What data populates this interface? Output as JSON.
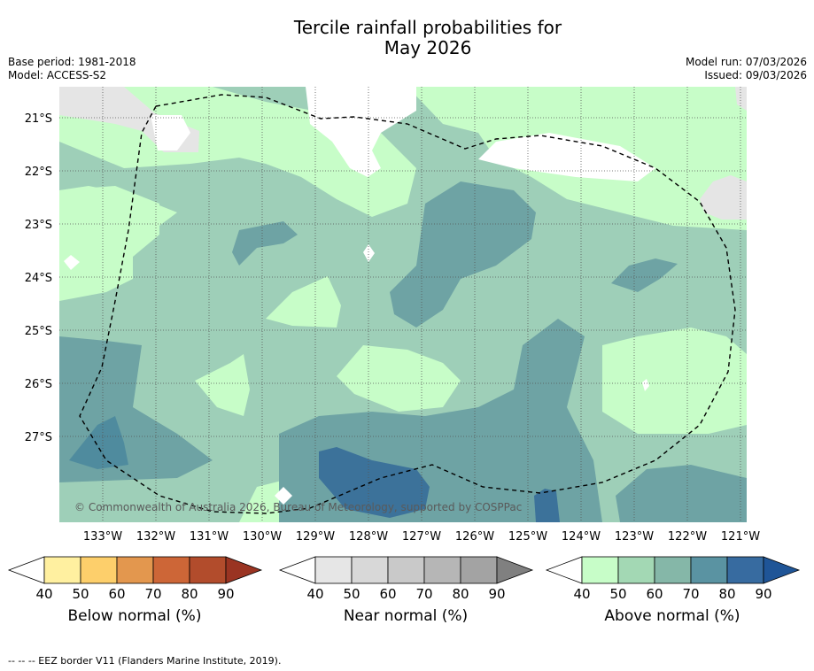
{
  "title": {
    "line1": "Tercile rainfall probabilities for",
    "line2": "May 2026"
  },
  "meta": {
    "base_period": "Base period: 1981-2018",
    "model": "Model: ACCESS-S2",
    "model_run": "Model run: 07/03/2026",
    "issued": "Issued: 09/03/2026"
  },
  "map": {
    "copyright": "© Commonwealth of Australia 2026, Bureau of Meteorology, supported by COSPPac",
    "lon_labels": [
      "133°W",
      "132°W",
      "131°W",
      "130°W",
      "129°W",
      "128°W",
      "127°W",
      "126°W",
      "125°W",
      "124°W",
      "123°W",
      "122°W",
      "121°W"
    ],
    "lat_labels": [
      "21°S",
      "22°S",
      "23°S",
      "24°S",
      "25°S",
      "26°S",
      "27°S"
    ],
    "category_colors": {
      "above_40_50": "#c7fdc8",
      "above_50_60": "#9ecfb8",
      "above_60_70": "#6ea3a4",
      "above_70_80": "#4f8b9e",
      "above_80_90": "#3c729a",
      "land_grey": "#e5e5e5"
    }
  },
  "colorbars": [
    {
      "label": "Below normal (%)",
      "ticks": [
        "40",
        "50",
        "60",
        "70",
        "80",
        "90"
      ],
      "colors": [
        "#ffffff",
        "#fff0a0",
        "#fdcf6b",
        "#e3974e",
        "#cd6637",
        "#b24c2c",
        "#9a3422"
      ]
    },
    {
      "label": "Near normal (%)",
      "ticks": [
        "40",
        "50",
        "60",
        "70",
        "80",
        "90"
      ],
      "colors": [
        "#ffffff",
        "#e6e6e6",
        "#d8d8d8",
        "#c9c9c9",
        "#b6b6b6",
        "#a3a3a3",
        "#808080"
      ]
    },
    {
      "label": "Above normal (%)",
      "ticks": [
        "40",
        "50",
        "60",
        "70",
        "80",
        "90"
      ],
      "colors": [
        "#ffffff",
        "#c7fdc8",
        "#a3d8b4",
        "#85b7a8",
        "#5a93a2",
        "#376ba0",
        "#1f5597"
      ]
    }
  ],
  "footer": "--  --  -- EEZ border V11 (Flanders Marine Institute, 2019)."
}
